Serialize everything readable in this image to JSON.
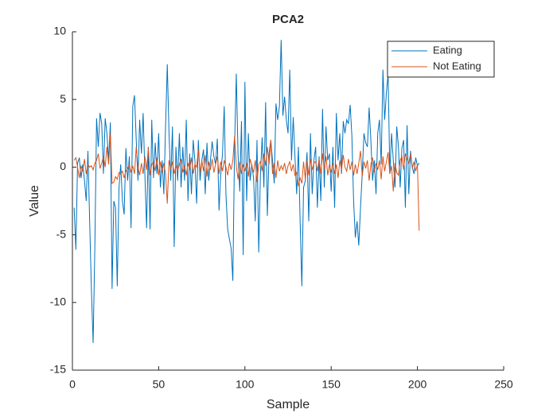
{
  "chart_data": {
    "type": "line",
    "title": "PCA2",
    "xlabel": "Sample",
    "ylabel": "Value",
    "x": [
      1,
      2,
      3,
      4,
      5,
      6,
      7,
      8,
      9,
      10,
      11,
      12,
      13,
      14,
      15,
      16,
      17,
      18,
      19,
      20,
      21,
      22,
      23,
      24,
      25,
      26,
      27,
      28,
      29,
      30,
      31,
      32,
      33,
      34,
      35,
      36,
      37,
      38,
      39,
      40,
      41,
      42,
      43,
      44,
      45,
      46,
      47,
      48,
      49,
      50,
      51,
      52,
      53,
      54,
      55,
      56,
      57,
      58,
      59,
      60,
      61,
      62,
      63,
      64,
      65,
      66,
      67,
      68,
      69,
      70,
      71,
      72,
      73,
      74,
      75,
      76,
      77,
      78,
      79,
      80,
      81,
      82,
      83,
      84,
      85,
      86,
      87,
      88,
      89,
      90,
      91,
      92,
      93,
      94,
      95,
      96,
      97,
      98,
      99,
      100,
      101,
      102,
      103,
      104,
      105,
      106,
      107,
      108,
      109,
      110,
      111,
      112,
      113,
      114,
      115,
      116,
      117,
      118,
      119,
      120,
      121,
      122,
      123,
      124,
      125,
      126,
      127,
      128,
      129,
      130,
      131,
      132,
      133,
      134,
      135,
      136,
      137,
      138,
      139,
      140,
      141,
      142,
      143,
      144,
      145,
      146,
      147,
      148,
      149,
      150,
      151,
      152,
      153,
      154,
      155,
      156,
      157,
      158,
      159,
      160,
      161,
      162,
      163,
      164,
      165,
      166,
      167,
      168,
      169,
      170,
      171,
      172,
      173,
      174,
      175,
      176,
      177,
      178,
      179,
      180,
      181,
      182,
      183,
      184,
      185,
      186,
      187,
      188,
      189,
      190,
      191,
      192,
      193,
      194,
      195,
      196,
      197,
      198,
      199,
      200,
      201
    ],
    "series": [
      {
        "name": "Eating",
        "color": "#0072bd",
        "values": [
          -3,
          -6.1,
          0.3,
          0.7,
          -0.8,
          0.2,
          -1,
          -2.5,
          1.2,
          -4,
          -9,
          -13,
          -6,
          3.6,
          1.5,
          4,
          3.2,
          -0.5,
          3.6,
          2.5,
          0.5,
          3.3,
          -9,
          -2.5,
          -3,
          -8.8,
          -1.5,
          0.2,
          -2.5,
          -3.5,
          1.4,
          -1,
          0.8,
          -4.5,
          4.5,
          5.3,
          2,
          -1,
          3.5,
          1,
          4,
          -0.5,
          -4.5,
          1.5,
          -4.6,
          3.5,
          -0.8,
          1.8,
          -0.5,
          2.5,
          -1.5,
          0.5,
          -2,
          3,
          7.6,
          2.5,
          -1,
          3,
          -5.9,
          1.5,
          -1,
          2.5,
          -1.5,
          1.5,
          -1,
          3.5,
          -2.5,
          1,
          -2,
          2,
          0.5,
          -2.7,
          2,
          -1,
          0.5,
          1.3,
          -2,
          1.8,
          -1,
          0.5,
          1.9,
          0.8,
          0.2,
          2.1,
          -3.2,
          -0.5,
          1,
          4.5,
          -2,
          -4.6,
          -5.3,
          -6,
          -8.4,
          1.5,
          6.9,
          1,
          -1.8,
          3.4,
          -6.5,
          6.3,
          -2.5,
          2.5,
          -1,
          0.2,
          -0.8,
          -4,
          2,
          -6.3,
          -0.5,
          2.2,
          -1.5,
          4.8,
          -3.6,
          1,
          2,
          0.5,
          -1.2,
          4.7,
          3.5,
          4.5,
          9.4,
          3.8,
          5.2,
          3.5,
          2.5,
          7.2,
          0.5,
          3.7,
          0.8,
          -2,
          1.5,
          -4,
          -8.8,
          -1.5,
          -1,
          1.1,
          -4,
          2.5,
          -2,
          0.5,
          1.5,
          -3,
          0.8,
          -2.5,
          4.3,
          -1.5,
          3,
          0.5,
          1,
          -1.8,
          1.5,
          -3,
          4,
          0.5,
          2.5,
          -0.5,
          3.4,
          2.5,
          3.5,
          3.2,
          4.6,
          2.3,
          -2.5,
          -5.2,
          -4,
          -5.8,
          -3,
          -0.5,
          2.5,
          1.8,
          1.5,
          4.4,
          2,
          -1,
          0.5,
          -2,
          2.5,
          3.5,
          0.2,
          7.2,
          3.5,
          5.5,
          6.9,
          -0.5,
          2.5,
          0.5,
          -1.5,
          3,
          1.5,
          -1.5,
          1.4,
          2,
          -3,
          3.1,
          -2,
          1.2,
          0,
          -0.5,
          0.7,
          0.1,
          0.3
        ]
      },
      {
        "name": "Not Eating",
        "color": "#d95319",
        "values": [
          0.5,
          0.7,
          0,
          -0.8,
          0.1,
          -0.3,
          0.6,
          -0.5,
          0.2,
          0,
          0.1,
          -0.2,
          0.3,
          0.5,
          1,
          -0.1,
          0.3,
          0.8,
          0,
          1.5,
          0.2,
          2.5,
          -1.2,
          -1.1,
          -0.7,
          -0.9,
          -0.4,
          -0.5,
          -0.3,
          -0.8,
          -0.3,
          -0.1,
          0.2,
          -0.4,
          0.1,
          -0.5,
          1.5,
          0,
          -0.6,
          0.3,
          -0.5,
          0.8,
          -0.2,
          1.4,
          -0.6,
          0.2,
          0.4,
          -0.3,
          0.7,
          -0.6,
          0.4,
          -0.4,
          0.3,
          -0.5,
          -2.7,
          0.5,
          -0.2,
          0.4,
          -0.5,
          0.1,
          -0.3,
          0.2,
          0.6,
          -0.4,
          0.1,
          -0.6,
          0.3,
          -0.2,
          0.7,
          -0.5,
          0.2,
          0,
          1.3,
          -0.4,
          0.5,
          -0.3,
          0.9,
          -0.7,
          0.4,
          -0.2,
          0.6,
          -0.4,
          0.2,
          0.8,
          -0.5,
          0.4,
          -0.3,
          0.5,
          0,
          -0.6,
          0.3,
          -0.2,
          0.5,
          2.3,
          0.1,
          -0.9,
          0.4,
          -0.5,
          0.2,
          -0.3,
          0.3,
          -0.7,
          0.6,
          0.1,
          -0.4,
          0.5,
          -1.1,
          0.2,
          0.4,
          -0.3,
          1,
          0.1,
          1.5,
          0.2,
          2,
          -0.5,
          0.3,
          -0.8,
          0.5,
          -0.3,
          0.1,
          -0.2,
          0.3,
          -0.5,
          0.1,
          0.4,
          -0.3,
          0.2,
          -0.6,
          -0.4,
          -1.4,
          -0.8,
          -1.2,
          0.4,
          -0.9,
          0.5,
          -0.6,
          0.6,
          -0.2,
          0.3,
          0.4,
          -0.3,
          0.6,
          -0.5,
          1,
          -0.2,
          0.8,
          -0.6,
          0.2,
          -0.4,
          0.3,
          -0.5,
          0.2,
          -0.8,
          0.5,
          -0.2,
          0.9,
          0,
          -0.3,
          0.6,
          -0.2,
          0.4,
          -0.6,
          0.2,
          -0.5,
          0.3,
          1.2,
          -0.7,
          0.4,
          -0.1,
          0.5,
          -1,
          0.2,
          0.7,
          -0.4,
          0.3,
          -0.2,
          0.5,
          -0.9,
          0.8,
          -0.3,
          0.4,
          1.1,
          -0.5,
          0.1,
          -1.8,
          0.3,
          -0.4,
          -0.6,
          0.5,
          0.8,
          -0.2,
          1,
          0.6,
          0.3,
          1,
          -0.1,
          0.4,
          -0.3,
          0.2,
          -4.7
        ]
      }
    ],
    "xlim": [
      0,
      250
    ],
    "xticks": [
      0,
      50,
      100,
      150,
      200,
      250
    ],
    "ylim": [
      -15,
      10
    ],
    "yticks": [
      -15,
      -10,
      -5,
      0,
      5,
      10
    ],
    "legend": "northeast"
  }
}
